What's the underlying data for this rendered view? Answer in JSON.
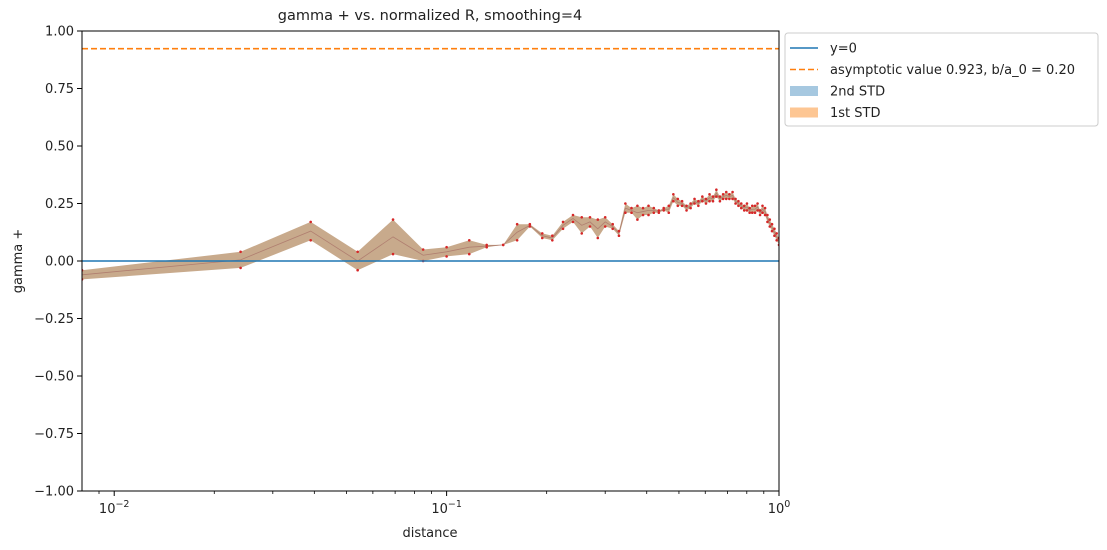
{
  "chart_data": {
    "type": "line",
    "title": "gamma + vs. normalized R, smoothing=4",
    "xlabel": "distance",
    "ylabel": "gamma +",
    "xscale": "log",
    "xlim": [
      0.008,
      1.0
    ],
    "ylim": [
      -1.0,
      1.0
    ],
    "xticks": [
      {
        "value": 0.01,
        "base": "10",
        "exp": "−2"
      },
      {
        "value": 0.1,
        "base": "10",
        "exp": "−1"
      },
      {
        "value": 1.0,
        "base": "10",
        "exp": "0"
      }
    ],
    "yticks": [
      {
        "value": -1.0,
        "label": "−1.00"
      },
      {
        "value": -0.75,
        "label": "−0.75"
      },
      {
        "value": -0.5,
        "label": "−0.50"
      },
      {
        "value": -0.25,
        "label": "−0.25"
      },
      {
        "value": 0.0,
        "label": "0.00"
      },
      {
        "value": 0.25,
        "label": "0.25"
      },
      {
        "value": 0.5,
        "label": "0.50"
      },
      {
        "value": 0.75,
        "label": "0.75"
      },
      {
        "value": 1.0,
        "label": "1.00"
      }
    ],
    "grid": false,
    "legend_position": "outside-top-right",
    "legend": [
      {
        "label": "y=0",
        "kind": "line",
        "color": "#1f77b4"
      },
      {
        "label": "asymptotic value 0.923, b/a_0 = 0.20",
        "kind": "dashed",
        "color": "#ff7f0e"
      },
      {
        "label": "2nd STD",
        "kind": "patch",
        "color": "#a6c8e0"
      },
      {
        "label": "1st STD",
        "kind": "patch",
        "color": "#fdc693"
      }
    ],
    "hline": {
      "y": 0.0,
      "color": "#1f77b4"
    },
    "asymptote": {
      "y": 0.923,
      "color": "#ff7f0e"
    },
    "band_color": "#c8aa8c",
    "point_color": "#d62728",
    "x": [
      0.008,
      0.024,
      0.039,
      0.054,
      0.069,
      0.085,
      0.1,
      0.117,
      0.132,
      0.148,
      0.163,
      0.178,
      0.194,
      0.208,
      0.224,
      0.24,
      0.255,
      0.27,
      0.285,
      0.3,
      0.316,
      0.33,
      0.345,
      0.36,
      0.375,
      0.39,
      0.405,
      0.42,
      0.435,
      0.45,
      0.466,
      0.481,
      0.496,
      0.511,
      0.527,
      0.542,
      0.557,
      0.572,
      0.588,
      0.603,
      0.618,
      0.633,
      0.648,
      0.664,
      0.679,
      0.694,
      0.709,
      0.725,
      0.74,
      0.755,
      0.77,
      0.786,
      0.801,
      0.816,
      0.831,
      0.847,
      0.862,
      0.877,
      0.892,
      0.908,
      0.923,
      0.938,
      0.953,
      0.969,
      0.984,
      1.0
    ],
    "upper": [
      -0.04,
      0.04,
      0.17,
      0.04,
      0.18,
      0.05,
      0.06,
      0.09,
      0.07,
      0.07,
      0.16,
      0.16,
      0.12,
      0.11,
      0.17,
      0.2,
      0.19,
      0.19,
      0.18,
      0.19,
      0.16,
      0.13,
      0.25,
      0.23,
      0.24,
      0.23,
      0.24,
      0.23,
      0.22,
      0.23,
      0.24,
      0.29,
      0.27,
      0.26,
      0.24,
      0.25,
      0.27,
      0.26,
      0.28,
      0.27,
      0.29,
      0.28,
      0.31,
      0.28,
      0.29,
      0.3,
      0.29,
      0.3,
      0.27,
      0.26,
      0.25,
      0.24,
      0.25,
      0.23,
      0.24,
      0.24,
      0.25,
      0.22,
      0.24,
      0.23,
      0.2,
      0.18,
      0.16,
      0.14,
      0.12,
      0.1
    ],
    "lower": [
      -0.08,
      -0.03,
      0.09,
      -0.04,
      0.03,
      0.0,
      0.02,
      0.03,
      0.06,
      0.07,
      0.09,
      0.15,
      0.1,
      0.09,
      0.14,
      0.17,
      0.12,
      0.15,
      0.1,
      0.15,
      0.14,
      0.11,
      0.21,
      0.21,
      0.18,
      0.2,
      0.2,
      0.21,
      0.21,
      0.22,
      0.21,
      0.26,
      0.24,
      0.24,
      0.22,
      0.23,
      0.25,
      0.24,
      0.26,
      0.25,
      0.26,
      0.26,
      0.28,
      0.26,
      0.27,
      0.27,
      0.27,
      0.27,
      0.25,
      0.24,
      0.23,
      0.22,
      0.22,
      0.21,
      0.21,
      0.21,
      0.22,
      0.2,
      0.21,
      0.2,
      0.17,
      0.15,
      0.13,
      0.11,
      0.09,
      0.07
    ]
  }
}
